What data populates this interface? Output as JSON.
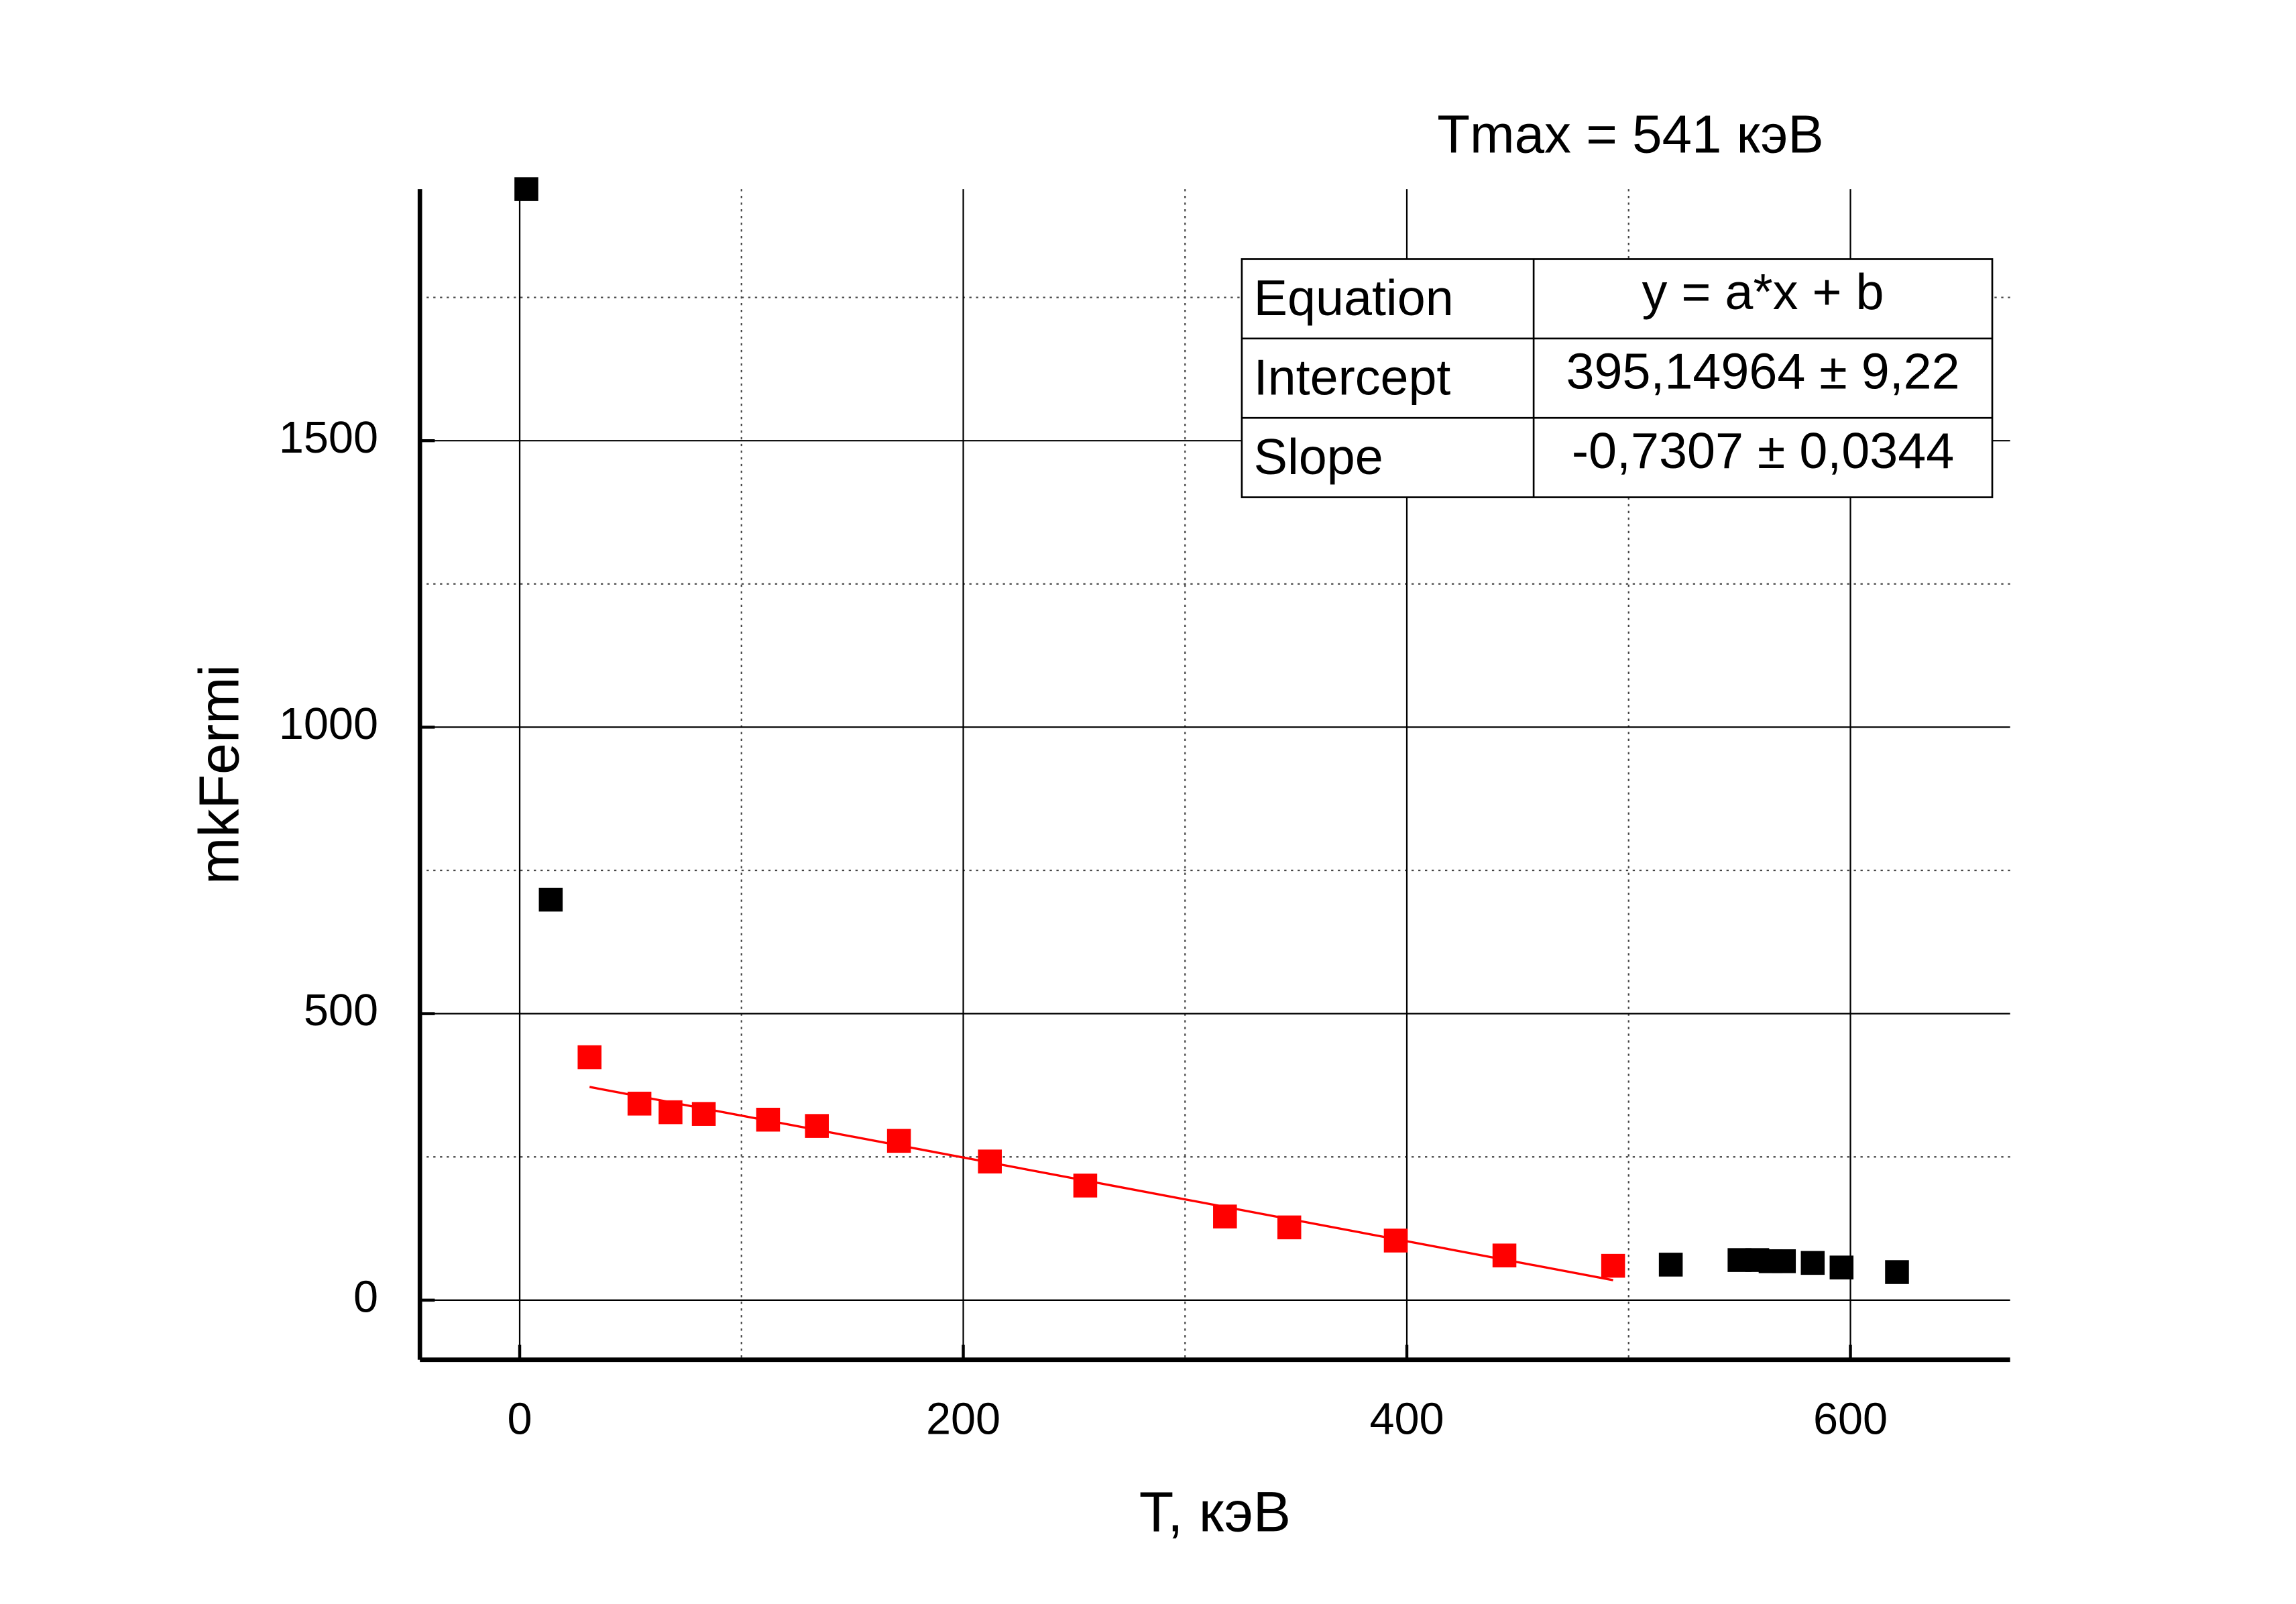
{
  "chart_data": {
    "type": "scatter",
    "annotation": "Tmax = 541 кэВ",
    "x_label": "T, кэВ",
    "y_label": "mkFermi",
    "xlim": [
      -45,
      672
    ],
    "ylim": [
      -104,
      1939
    ],
    "xticks": [
      0,
      200,
      400,
      600
    ],
    "yticks": [
      0,
      500,
      1000,
      1500
    ],
    "xminor_ticks": [
      100,
      300,
      500
    ],
    "yminor_ticks": [
      250,
      750,
      1250,
      1750
    ],
    "grid": true,
    "series": [
      {
        "color": "#000000",
        "x": [
          3,
          14,
          519,
          550,
          558,
          564,
          570,
          583,
          596,
          621
        ],
        "values": [
          1939,
          699,
          62,
          70,
          70,
          68,
          68,
          65,
          57,
          49
        ]
      },
      {
        "color": "#ff0000",
        "x": [
          31.5,
          54,
          68,
          83,
          112,
          134,
          171,
          212,
          255,
          318,
          347,
          395,
          444,
          493
        ],
        "values": [
          424,
          343,
          328,
          325,
          315,
          304,
          278,
          242,
          200,
          146,
          127,
          104,
          78,
          60
        ]
      },
      {
        "type": "line",
        "color": "#ff0000",
        "x": [
          31.5,
          493
        ],
        "values": [
          372.1,
          34.9
        ]
      }
    ],
    "table": {
      "rows": [
        [
          "Equation",
          "y = a*x + b"
        ],
        [
          "Intercept",
          "395,14964 ± 9,22"
        ],
        [
          "Slope",
          "-0,7307 ± 0,0344"
        ]
      ]
    }
  }
}
